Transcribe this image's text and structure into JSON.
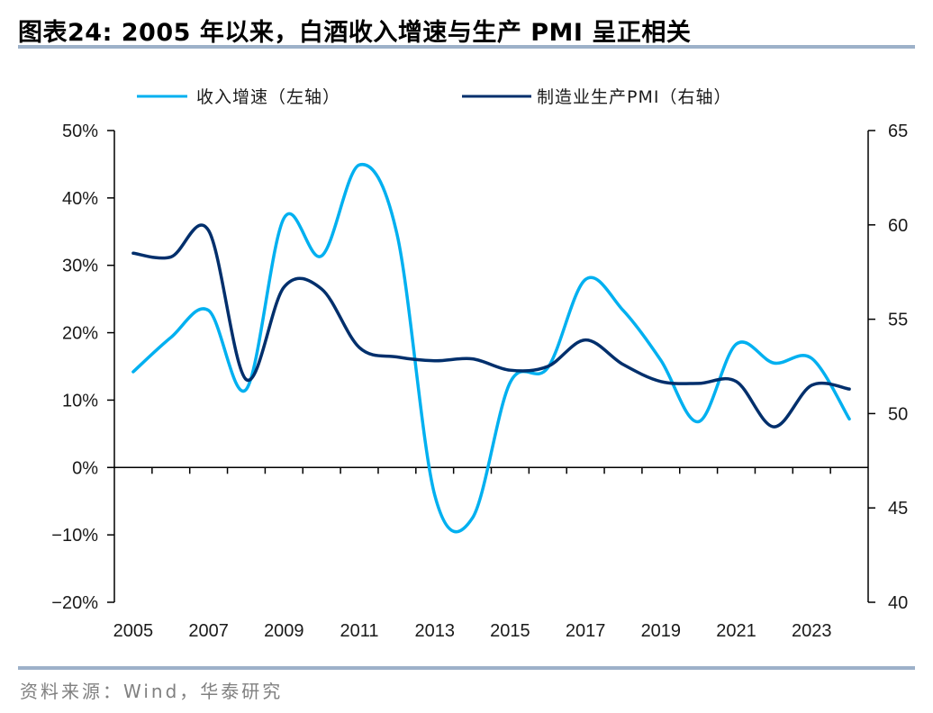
{
  "title": "图表24:  2005 年以来，白酒收入增速与生产 PMI 呈正相关",
  "source": "资料来源：Wind，华泰研究",
  "chart_data": {
    "type": "line",
    "title": "2005 年以来，白酒收入增速与生产 PMI 呈正相关",
    "x": [
      2005,
      2006,
      2007,
      2008,
      2009,
      2010,
      2011,
      2012,
      2013,
      2014,
      2015,
      2016,
      2017,
      2018,
      2019,
      2020,
      2021,
      2022,
      2023,
      2024
    ],
    "x_tick_labels": [
      "2005",
      "2007",
      "2009",
      "2011",
      "2013",
      "2015",
      "2017",
      "2019",
      "2021",
      "2023"
    ],
    "series": [
      {
        "name": "收入增速（左轴）",
        "axis": "left",
        "color": "#00b0f0",
        "values": [
          14.2,
          19.3,
          23.3,
          11.6,
          37.0,
          31.4,
          44.9,
          34.6,
          -4.1,
          -7.5,
          12.6,
          14.8,
          27.9,
          23.3,
          15.9,
          6.8,
          18.3,
          15.5,
          16.2,
          7.2
        ]
      },
      {
        "name": "制造业生产PMI（右轴）",
        "axis": "right",
        "color": "#002f6c",
        "values": [
          58.5,
          58.3,
          59.7,
          51.8,
          56.7,
          56.6,
          53.5,
          53.0,
          52.8,
          52.9,
          52.3,
          52.5,
          53.9,
          52.6,
          51.7,
          51.6,
          51.7,
          49.3,
          51.5,
          51.3
        ]
      }
    ],
    "y_left": {
      "label": "",
      "ylim": [
        -20,
        50
      ],
      "ticks": [
        50,
        40,
        30,
        20,
        10,
        0,
        -10,
        -20
      ],
      "tick_labels": [
        "50%",
        "40%",
        "30%",
        "20%",
        "10%",
        "0%",
        "−10%",
        "−20%"
      ]
    },
    "y_right": {
      "label": "",
      "ylim": [
        40,
        65
      ],
      "ticks": [
        65,
        60,
        55,
        50,
        45,
        40
      ],
      "tick_labels": [
        "65",
        "60",
        "55",
        "50",
        "45",
        "40"
      ]
    },
    "xlabel": "",
    "grid": false,
    "legend": "top"
  }
}
